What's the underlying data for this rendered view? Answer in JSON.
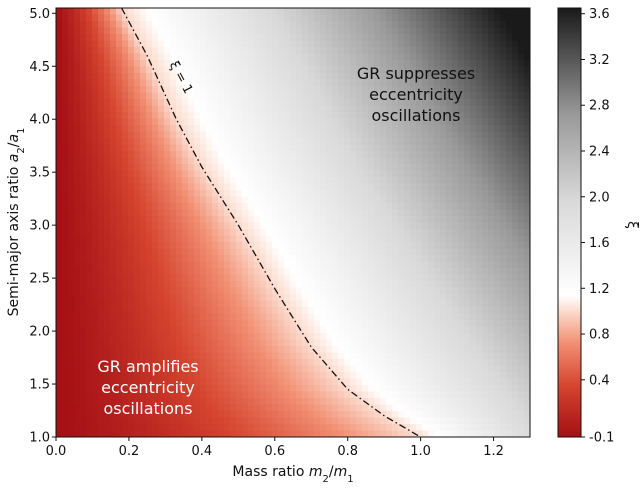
{
  "chart_data": {
    "type": "heatmap",
    "xlabel": "Mass ratio m2/m1",
    "ylabel": "Semi-major axis ratio a2/a1",
    "colorbar_label": "ξ",
    "xlim": [
      0.0,
      1.3
    ],
    "ylim": [
      1.0,
      5.05
    ],
    "x_ticks": [
      0.0,
      0.2,
      0.4,
      0.6,
      0.8,
      1.0,
      1.2
    ],
    "x_tick_labels": [
      "0.0",
      "0.2",
      "0.4",
      "0.6",
      "0.8",
      "1.0",
      "1.2"
    ],
    "y_ticks": [
      1.0,
      1.5,
      2.0,
      2.5,
      3.0,
      3.5,
      4.0,
      4.5,
      5.0
    ],
    "y_tick_labels": [
      "1.0",
      "1.5",
      "2.0",
      "2.5",
      "3.0",
      "3.5",
      "4.0",
      "4.5",
      "5.0"
    ],
    "colorbar_range": [
      -0.1,
      3.65
    ],
    "colorbar_ticks": [
      -0.1,
      0.4,
      0.8,
      1.2,
      1.6,
      2.0,
      2.4,
      2.8,
      3.2,
      3.6
    ],
    "colorbar_tick_labels": [
      "-0.1",
      "0.4",
      "0.8",
      "1.2",
      "1.6",
      "2.0",
      "2.4",
      "2.8",
      "3.2",
      "3.6"
    ],
    "contour": {
      "label": "ξ = 1",
      "points": [
        [
          0.18,
          5.05
        ],
        [
          0.25,
          4.6
        ],
        [
          0.33,
          4.0
        ],
        [
          0.4,
          3.55
        ],
        [
          0.5,
          3.0
        ],
        [
          0.6,
          2.4
        ],
        [
          0.7,
          1.85
        ],
        [
          0.8,
          1.45
        ],
        [
          0.9,
          1.2
        ],
        [
          1.0,
          1.0
        ]
      ]
    },
    "annotations": [
      {
        "id": "suppress",
        "lines": [
          "GR suppresses",
          "eccentricity",
          "oscillations"
        ]
      },
      {
        "id": "amplify",
        "lines": [
          "GR amplifies",
          "eccentricity",
          "oscillations"
        ]
      }
    ],
    "colors": {
      "low": "#a50f15",
      "mid": "#ffffff",
      "high": "#1a1a1a"
    }
  }
}
